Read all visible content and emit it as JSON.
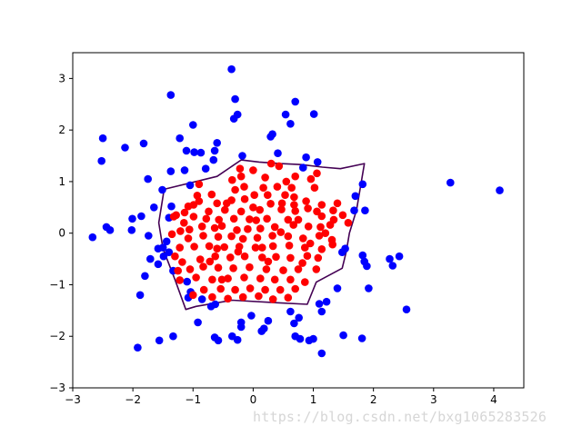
{
  "chart_data": {
    "type": "scatter",
    "title": "",
    "xlabel": "",
    "ylabel": "",
    "xlim": [
      -3,
      4.5
    ],
    "ylim": [
      -3,
      3.5
    ],
    "grid": false,
    "x_ticks": [
      "−3",
      "−2",
      "−1",
      "0",
      "1",
      "2",
      "3",
      "4"
    ],
    "y_ticks": [
      "−3",
      "−2",
      "−1",
      "0",
      "1",
      "2",
      "3"
    ],
    "colors": {
      "outer": "#0000ff",
      "inner": "#ff0000",
      "boundary": "#440154",
      "axes": "#000000"
    },
    "series": [
      {
        "key": "outer",
        "points": [
          [
            -0.36,
            3.18
          ],
          [
            -1.37,
            2.68
          ],
          [
            -0.3,
            2.6
          ],
          [
            -0.32,
            2.22
          ],
          [
            -0.26,
            2.3
          ],
          [
            0.7,
            2.55
          ],
          [
            1.01,
            2.31
          ],
          [
            0.54,
            2.3
          ],
          [
            0.62,
            2.12
          ],
          [
            -1.0,
            2.1
          ],
          [
            0.32,
            1.92
          ],
          [
            0.29,
            1.87
          ],
          [
            -2.5,
            1.84
          ],
          [
            -1.22,
            1.84
          ],
          [
            -1.82,
            1.74
          ],
          [
            -2.13,
            1.66
          ],
          [
            -0.6,
            1.75
          ],
          [
            -1.11,
            1.6
          ],
          [
            -0.98,
            1.57
          ],
          [
            -0.87,
            1.56
          ],
          [
            -0.64,
            1.6
          ],
          [
            -0.18,
            1.5
          ],
          [
            0.41,
            1.55
          ],
          [
            -2.52,
            1.4
          ],
          [
            -0.66,
            1.42
          ],
          [
            0.88,
            1.47
          ],
          [
            1.07,
            1.38
          ],
          [
            -1.37,
            1.2
          ],
          [
            -1.14,
            1.22
          ],
          [
            -0.79,
            1.25
          ],
          [
            0.83,
            1.27
          ],
          [
            -1.75,
            1.05
          ],
          [
            1.82,
            0.95
          ],
          [
            -1.05,
            0.93
          ],
          [
            -1.51,
            0.84
          ],
          [
            3.28,
            0.98
          ],
          [
            4.1,
            0.83
          ],
          [
            1.7,
            0.72
          ],
          [
            -1.65,
            0.5
          ],
          [
            -1.36,
            0.52
          ],
          [
            -1.4,
            0.3
          ],
          [
            -2.01,
            0.28
          ],
          [
            1.68,
            0.44
          ],
          [
            1.86,
            0.44
          ],
          [
            -1.86,
            0.33
          ],
          [
            -2.44,
            0.12
          ],
          [
            -2.38,
            0.06
          ],
          [
            -2.02,
            0.06
          ],
          [
            -2.67,
            -0.08
          ],
          [
            -1.74,
            -0.05
          ],
          [
            -1.58,
            -0.3
          ],
          [
            -1.5,
            -0.28
          ],
          [
            -1.44,
            -0.16
          ],
          [
            -1.4,
            -0.37
          ],
          [
            -1.49,
            -0.45
          ],
          [
            1.53,
            -0.3
          ],
          [
            1.48,
            -0.37
          ],
          [
            1.82,
            -0.43
          ],
          [
            2.43,
            -0.45
          ],
          [
            2.27,
            -0.5
          ],
          [
            2.32,
            -0.63
          ],
          [
            1.85,
            -0.55
          ],
          [
            1.89,
            -0.64
          ],
          [
            -1.71,
            -0.5
          ],
          [
            -1.58,
            -0.6
          ],
          [
            -1.33,
            -0.73
          ],
          [
            -1.8,
            -0.83
          ],
          [
            -1.1,
            -0.94
          ],
          [
            1.4,
            -1.07
          ],
          [
            1.92,
            -1.07
          ],
          [
            -1.88,
            -1.2
          ],
          [
            -1.04,
            -1.14
          ],
          [
            -1.08,
            -1.25
          ],
          [
            -0.85,
            -1.28
          ],
          [
            -0.7,
            -1.42
          ],
          [
            -0.63,
            -1.38
          ],
          [
            1.1,
            -1.37
          ],
          [
            1.22,
            -1.33
          ],
          [
            2.55,
            -1.48
          ],
          [
            -0.03,
            -1.6
          ],
          [
            -0.2,
            -1.73
          ],
          [
            0.25,
            -1.7
          ],
          [
            0.76,
            -1.64
          ],
          [
            0.68,
            -1.75
          ],
          [
            1.14,
            -1.52
          ],
          [
            -0.92,
            -1.73
          ],
          [
            -0.2,
            -1.82
          ],
          [
            0.18,
            -1.85
          ],
          [
            -1.33,
            -2.0
          ],
          [
            -1.56,
            -2.08
          ],
          [
            -0.64,
            -2.02
          ],
          [
            -0.35,
            -2.0
          ],
          [
            0.14,
            -1.9
          ],
          [
            0.7,
            -2.0
          ],
          [
            0.78,
            -2.05
          ],
          [
            -0.26,
            -2.07
          ],
          [
            -0.58,
            -2.08
          ],
          [
            1.0,
            -2.05
          ],
          [
            1.5,
            -1.98
          ],
          [
            1.81,
            -2.04
          ],
          [
            -1.92,
            -2.22
          ],
          [
            1.14,
            -2.33
          ],
          [
            0.93,
            -2.08
          ],
          [
            0.62,
            -1.52
          ]
        ]
      },
      {
        "key": "inner",
        "points": [
          [
            0.3,
            1.35
          ],
          [
            0.43,
            1.3
          ],
          [
            0.0,
            1.22
          ],
          [
            -0.2,
            1.1
          ],
          [
            0.7,
            1.1
          ],
          [
            1.06,
            1.16
          ],
          [
            0.2,
            1.08
          ],
          [
            0.96,
            1.05
          ],
          [
            -0.35,
            1.03
          ],
          [
            -0.15,
            0.9
          ],
          [
            0.17,
            0.88
          ],
          [
            0.4,
            0.9
          ],
          [
            0.64,
            0.88
          ],
          [
            -0.3,
            0.84
          ],
          [
            0.24,
            0.74
          ],
          [
            0.02,
            0.74
          ],
          [
            1.02,
            0.88
          ],
          [
            0.53,
            0.74
          ],
          [
            -0.69,
            0.75
          ],
          [
            -0.93,
            0.73
          ],
          [
            -0.9,
            0.62
          ],
          [
            -0.99,
            0.55
          ],
          [
            -1.08,
            0.52
          ],
          [
            -0.6,
            0.58
          ],
          [
            -0.36,
            0.64
          ],
          [
            -0.14,
            0.66
          ],
          [
            0.29,
            0.57
          ],
          [
            0.68,
            0.7
          ],
          [
            0.88,
            0.62
          ],
          [
            1.14,
            0.55
          ],
          [
            1.4,
            0.58
          ],
          [
            1.06,
            0.42
          ],
          [
            0.91,
            0.48
          ],
          [
            0.7,
            0.43
          ],
          [
            0.47,
            0.46
          ],
          [
            0.11,
            0.45
          ],
          [
            -0.2,
            0.42
          ],
          [
            -0.47,
            0.45
          ],
          [
            -0.74,
            0.42
          ],
          [
            -1.14,
            0.4
          ],
          [
            -1.28,
            0.35
          ],
          [
            -0.99,
            0.32
          ],
          [
            -0.78,
            0.28
          ],
          [
            -0.57,
            0.26
          ],
          [
            -0.32,
            0.28
          ],
          [
            -0.06,
            0.27
          ],
          [
            0.23,
            0.28
          ],
          [
            0.58,
            0.26
          ],
          [
            0.75,
            0.26
          ],
          [
            1.14,
            0.33
          ],
          [
            1.34,
            0.26
          ],
          [
            1.49,
            0.35
          ],
          [
            1.58,
            0.2
          ],
          [
            1.28,
            0.16
          ],
          [
            1.12,
            0.12
          ],
          [
            0.92,
            0.13
          ],
          [
            0.67,
            0.16
          ],
          [
            0.36,
            0.12
          ],
          [
            0.12,
            0.09
          ],
          [
            -0.09,
            0.08
          ],
          [
            -0.27,
            0.06
          ],
          [
            -0.52,
            0.14
          ],
          [
            -0.64,
            0.1
          ],
          [
            -0.85,
            0.13
          ],
          [
            -1.06,
            0.07
          ],
          [
            -1.21,
            0.04
          ],
          [
            -1.35,
            -0.02
          ],
          [
            -1.08,
            -0.1
          ],
          [
            -0.83,
            -0.05
          ],
          [
            -0.58,
            -0.07
          ],
          [
            -0.36,
            -0.06
          ],
          [
            -0.17,
            -0.11
          ],
          [
            0.07,
            -0.09
          ],
          [
            0.32,
            -0.05
          ],
          [
            0.58,
            -0.06
          ],
          [
            0.83,
            -0.1
          ],
          [
            1.1,
            -0.05
          ],
          [
            1.31,
            -0.13
          ],
          [
            1.32,
            -0.22
          ],
          [
            1.14,
            -0.31
          ],
          [
            0.86,
            -0.28
          ],
          [
            0.6,
            -0.24
          ],
          [
            0.33,
            -0.25
          ],
          [
            0.04,
            -0.28
          ],
          [
            -0.23,
            -0.26
          ],
          [
            -0.48,
            -0.27
          ],
          [
            -0.73,
            -0.25
          ],
          [
            -0.98,
            -0.26
          ],
          [
            -1.22,
            -0.28
          ],
          [
            -1.3,
            -0.45
          ],
          [
            -1.18,
            -0.56
          ],
          [
            -0.88,
            -0.51
          ],
          [
            -0.63,
            -0.45
          ],
          [
            -0.38,
            -0.47
          ],
          [
            -0.14,
            -0.45
          ],
          [
            0.15,
            -0.47
          ],
          [
            0.38,
            -0.46
          ],
          [
            0.62,
            -0.48
          ],
          [
            0.9,
            -0.44
          ],
          [
            1.08,
            -0.48
          ],
          [
            1.05,
            -0.7
          ],
          [
            0.75,
            -0.7
          ],
          [
            0.5,
            -0.72
          ],
          [
            0.22,
            -0.7
          ],
          [
            -0.06,
            -0.66
          ],
          [
            -0.33,
            -0.68
          ],
          [
            -0.58,
            -0.67
          ],
          [
            -0.83,
            -0.65
          ],
          [
            -1.05,
            -0.7
          ],
          [
            -1.25,
            -0.73
          ],
          [
            -1.22,
            -0.91
          ],
          [
            -0.95,
            -0.86
          ],
          [
            -0.68,
            -0.9
          ],
          [
            -0.42,
            -0.88
          ],
          [
            -0.15,
            -0.86
          ],
          [
            0.12,
            -0.88
          ],
          [
            0.36,
            -0.9
          ],
          [
            0.62,
            -0.9
          ],
          [
            0.86,
            -0.95
          ],
          [
            0.7,
            -1.08
          ],
          [
            0.45,
            -1.1
          ],
          [
            0.2,
            -1.1
          ],
          [
            -0.05,
            -1.07
          ],
          [
            -0.3,
            -1.1
          ],
          [
            -0.54,
            -1.08
          ],
          [
            -0.82,
            -1.1
          ],
          [
            -1.0,
            -1.2
          ],
          [
            -0.68,
            -1.24
          ],
          [
            -0.42,
            -1.27
          ],
          [
            -0.17,
            -1.24
          ],
          [
            0.09,
            -1.22
          ],
          [
            0.33,
            -1.28
          ],
          [
            0.58,
            -1.25
          ],
          [
            -0.6,
            -0.3
          ],
          [
            0.0,
            0.5
          ],
          [
            0.48,
            0.58
          ],
          [
            -0.25,
            -0.36
          ],
          [
            0.95,
            -0.2
          ],
          [
            -0.9,
            0.95
          ],
          [
            -1.32,
            0.32
          ],
          [
            1.33,
            0.44
          ],
          [
            0.15,
            -0.28
          ],
          [
            0.05,
            0.25
          ],
          [
            -0.44,
            0.58
          ],
          [
            0.82,
            -0.58
          ],
          [
            -0.72,
            -0.55
          ],
          [
            0.46,
            0.02
          ],
          [
            0.25,
            -0.55
          ],
          [
            -0.52,
            -0.9
          ],
          [
            1.2,
            0.0
          ],
          [
            -1.15,
            0.2
          ],
          [
            0.68,
            0.55
          ],
          [
            -0.22,
            1.25
          ],
          [
            0.55,
            1.0
          ]
        ]
      }
    ],
    "boundary": [
      [
        -1.48,
        0.85
      ],
      [
        -0.6,
        1.1
      ],
      [
        -0.2,
        1.42
      ],
      [
        0.1,
        1.38
      ],
      [
        0.45,
        1.35
      ],
      [
        0.8,
        1.33
      ],
      [
        1.15,
        1.28
      ],
      [
        1.45,
        1.25
      ],
      [
        1.85,
        1.35
      ],
      [
        1.72,
        0.45
      ],
      [
        1.6,
        0.0
      ],
      [
        1.55,
        -0.35
      ],
      [
        1.48,
        -0.68
      ],
      [
        1.05,
        -0.95
      ],
      [
        0.9,
        -1.38
      ],
      [
        0.4,
        -1.35
      ],
      [
        -0.35,
        -1.3
      ],
      [
        -0.95,
        -1.42
      ],
      [
        -1.12,
        -1.48
      ],
      [
        -1.3,
        -0.9
      ],
      [
        -1.5,
        -0.3
      ],
      [
        -1.57,
        0.2
      ],
      [
        -1.48,
        0.85
      ]
    ]
  },
  "watermark": "https://blog.csdn.net/bxg1065283526"
}
